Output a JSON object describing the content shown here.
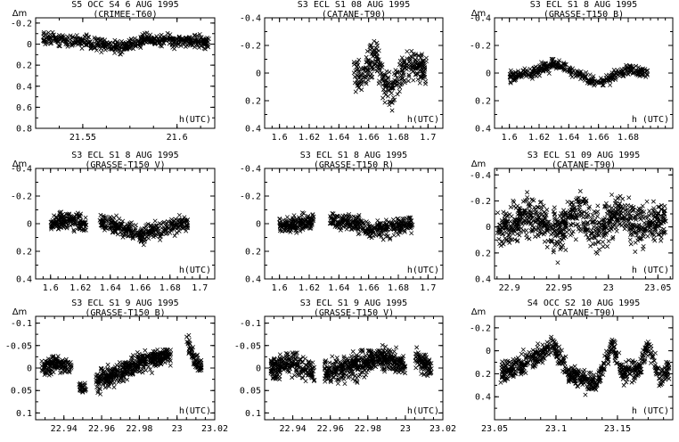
{
  "figure": {
    "ylabel": "Δm",
    "xlabel": "h(UTC)"
  },
  "chart_data": [
    {
      "type": "scatter",
      "title": "S5 OCC S4 6 AUG 1995",
      "subtitle": "(CRIMEE-T60)",
      "xlabel": "h(UTC)",
      "ylabel": "Δm",
      "xlim": [
        21.525,
        21.62
      ],
      "ylim": [
        -0.25,
        0.8
      ],
      "y_inverted": true,
      "xticks": [
        {
          "v": 21.55,
          "label": "21.55"
        },
        {
          "v": 21.6,
          "label": "21.6"
        }
      ],
      "yticks": [
        {
          "v": -0.2,
          "label": "-0.2"
        },
        {
          "v": 0,
          "label": "0"
        },
        {
          "v": 0.2,
          "label": "0.2"
        },
        {
          "v": 0.4,
          "label": "0.4"
        },
        {
          "v": 0.6,
          "label": "0.6"
        },
        {
          "v": 0.8,
          "label": "0.8"
        }
      ],
      "segments": [
        {
          "x0": 21.529,
          "x1": 21.617,
          "n": 520,
          "spread": 0.06,
          "knots": [
            [
              21.53,
              -0.05
            ],
            [
              21.55,
              -0.03
            ],
            [
              21.57,
              0.03
            ],
            [
              21.585,
              -0.05
            ],
            [
              21.6,
              -0.02
            ],
            [
              21.617,
              -0.02
            ]
          ]
        }
      ]
    },
    {
      "type": "scatter",
      "title": "S3 ECL S1 08 AUG 1995",
      "subtitle": "(CATANE-T90)",
      "xlabel": "h(UTC)",
      "ylabel": "",
      "xlim": [
        1.59,
        1.71
      ],
      "ylim": [
        -0.4,
        0.4
      ],
      "y_inverted": true,
      "xticks": [
        {
          "v": 1.6,
          "label": "1.6"
        },
        {
          "v": 1.62,
          "label": "1.62"
        },
        {
          "v": 1.64,
          "label": "1.64"
        },
        {
          "v": 1.66,
          "label": "1.66"
        },
        {
          "v": 1.68,
          "label": "1.68"
        },
        {
          "v": 1.7,
          "label": "1.7"
        }
      ],
      "yticks": [
        {
          "v": -0.4,
          "label": "-0.4"
        },
        {
          "v": -0.2,
          "label": "-0.2"
        },
        {
          "v": 0,
          "label": "0"
        },
        {
          "v": 0.2,
          "label": "0.2"
        },
        {
          "v": 0.4,
          "label": "0.4"
        }
      ],
      "segments": [
        {
          "x0": 1.65,
          "x1": 1.699,
          "n": 330,
          "spread": 0.12,
          "knots": [
            [
              1.65,
              -0.03
            ],
            [
              1.655,
              0.05
            ],
            [
              1.66,
              -0.08
            ],
            [
              1.665,
              -0.12
            ],
            [
              1.67,
              0.05
            ],
            [
              1.675,
              0.15
            ],
            [
              1.68,
              0.02
            ],
            [
              1.69,
              -0.05
            ],
            [
              1.699,
              -0.03
            ]
          ]
        }
      ]
    },
    {
      "type": "scatter",
      "title": "S3 ECL S1 8 AUG 1995",
      "subtitle": "(GRASSE-T150 B)",
      "xlabel": "h (UTC)",
      "ylabel": "Δm",
      "xlim": [
        1.59,
        1.71
      ],
      "ylim": [
        -0.4,
        0.4
      ],
      "y_inverted": true,
      "xticks": [
        {
          "v": 1.6,
          "label": "1.6"
        },
        {
          "v": 1.62,
          "label": "1.62"
        },
        {
          "v": 1.64,
          "label": "1.64"
        },
        {
          "v": 1.66,
          "label": "1.66"
        },
        {
          "v": 1.68,
          "label": "1.68"
        }
      ],
      "yticks": [
        {
          "v": -0.4,
          "label": "-0.4"
        },
        {
          "v": -0.2,
          "label": "-0.2"
        },
        {
          "v": 0,
          "label": "0"
        },
        {
          "v": 0.2,
          "label": "0.2"
        },
        {
          "v": 0.4,
          "label": "0.4"
        }
      ],
      "segments": [
        {
          "x0": 1.6,
          "x1": 1.693,
          "n": 380,
          "spread": 0.04,
          "knots": [
            [
              1.6,
              0.03
            ],
            [
              1.62,
              -0.02
            ],
            [
              1.63,
              -0.07
            ],
            [
              1.645,
              0.0
            ],
            [
              1.66,
              0.08
            ],
            [
              1.67,
              0.02
            ],
            [
              1.68,
              -0.02
            ],
            [
              1.693,
              0.0
            ]
          ]
        }
      ]
    },
    {
      "type": "scatter",
      "title": "S3 ECL S1 8 AUG 1995",
      "subtitle": "(GRASSE-T150 V)",
      "xlabel": "h(UTC)",
      "ylabel": "Δm",
      "xlim": [
        1.59,
        1.71
      ],
      "ylim": [
        -0.4,
        0.4
      ],
      "y_inverted": true,
      "xticks": [
        {
          "v": 1.6,
          "label": "1.6"
        },
        {
          "v": 1.62,
          "label": "1.62"
        },
        {
          "v": 1.64,
          "label": "1.64"
        },
        {
          "v": 1.66,
          "label": "1.66"
        },
        {
          "v": 1.68,
          "label": "1.68"
        },
        {
          "v": 1.7,
          "label": "1.7"
        }
      ],
      "yticks": [
        {
          "v": -0.4,
          "label": "-0.4"
        },
        {
          "v": -0.2,
          "label": "-0.2"
        },
        {
          "v": 0,
          "label": "0"
        },
        {
          "v": 0.2,
          "label": "0.2"
        },
        {
          "v": 0.4,
          "label": "0.4"
        }
      ],
      "segments": [
        {
          "x0": 1.6,
          "x1": 1.624,
          "n": 170,
          "spread": 0.06,
          "knots": [
            [
              1.6,
              0.0
            ],
            [
              1.612,
              -0.02
            ],
            [
              1.624,
              0.0
            ]
          ]
        },
        {
          "x0": 1.633,
          "x1": 1.692,
          "n": 330,
          "spread": 0.06,
          "knots": [
            [
              1.633,
              -0.02
            ],
            [
              1.645,
              0.02
            ],
            [
              1.66,
              0.08
            ],
            [
              1.675,
              0.03
            ],
            [
              1.692,
              0.0
            ]
          ]
        }
      ]
    },
    {
      "type": "scatter",
      "title": "S3 ECL S1 8 AUG 1995",
      "subtitle": "(GRASSE-T150 R)",
      "xlabel": "h(UTC)",
      "ylabel": "",
      "xlim": [
        1.59,
        1.71
      ],
      "ylim": [
        -0.4,
        0.4
      ],
      "y_inverted": true,
      "xticks": [
        {
          "v": 1.6,
          "label": "1.6"
        },
        {
          "v": 1.62,
          "label": "1.62"
        },
        {
          "v": 1.64,
          "label": "1.64"
        },
        {
          "v": 1.66,
          "label": "1.66"
        },
        {
          "v": 1.68,
          "label": "1.68"
        },
        {
          "v": 1.7,
          "label": "1.7"
        }
      ],
      "yticks": [
        {
          "v": -0.4,
          "label": "-0.4"
        },
        {
          "v": -0.2,
          "label": "-0.2"
        },
        {
          "v": 0,
          "label": "0"
        },
        {
          "v": 0.2,
          "label": "0.2"
        },
        {
          "v": 0.4,
          "label": "0.4"
        }
      ],
      "segments": [
        {
          "x0": 1.6,
          "x1": 1.623,
          "n": 170,
          "spread": 0.06,
          "knots": [
            [
              1.6,
              0.02
            ],
            [
              1.612,
              0.0
            ],
            [
              1.623,
              -0.02
            ]
          ]
        },
        {
          "x0": 1.634,
          "x1": 1.69,
          "n": 330,
          "spread": 0.06,
          "knots": [
            [
              1.634,
              -0.03
            ],
            [
              1.65,
              0.0
            ],
            [
              1.662,
              0.05
            ],
            [
              1.68,
              0.02
            ],
            [
              1.69,
              0.0
            ]
          ]
        }
      ]
    },
    {
      "type": "scatter",
      "title": "S3 ECL S1 09 AUG 1995",
      "subtitle": "(CATANE-T90)",
      "xlabel": "h (UTC)",
      "ylabel": "Δm",
      "xlim": [
        22.885,
        23.065
      ],
      "ylim": [
        -0.45,
        0.4
      ],
      "y_inverted": true,
      "xticks": [
        {
          "v": 22.9,
          "label": "22.9"
        },
        {
          "v": 22.95,
          "label": "22.95"
        },
        {
          "v": 23.0,
          "label": "23"
        },
        {
          "v": 23.05,
          "label": "23.05"
        }
      ],
      "yticks": [
        {
          "v": -0.4,
          "label": "-0.4"
        },
        {
          "v": -0.2,
          "label": "-0.2"
        },
        {
          "v": 0,
          "label": "0"
        },
        {
          "v": 0.2,
          "label": "0.2"
        },
        {
          "v": 0.4,
          "label": "0.4"
        }
      ],
      "segments": [
        {
          "x0": 22.888,
          "x1": 23.058,
          "n": 850,
          "spread": 0.16,
          "knots": [
            [
              22.888,
              0.05
            ],
            [
              22.92,
              -0.1
            ],
            [
              22.95,
              0.05
            ],
            [
              22.97,
              -0.12
            ],
            [
              22.99,
              0.05
            ],
            [
              23.01,
              -0.12
            ],
            [
              23.03,
              0.0
            ],
            [
              23.058,
              -0.05
            ]
          ]
        }
      ]
    },
    {
      "type": "scatter",
      "title": "S3 ECL S1 9 AUG 1995",
      "subtitle": "(GRASSE-T150 B)",
      "xlabel": "h(UTC)",
      "ylabel": "Δm",
      "xlim": [
        22.925,
        23.02
      ],
      "ylim": [
        -0.115,
        0.115
      ],
      "y_inverted": true,
      "xticks": [
        {
          "v": 22.94,
          "label": "22.94"
        },
        {
          "v": 22.96,
          "label": "22.96"
        },
        {
          "v": 22.98,
          "label": "22.98"
        },
        {
          "v": 23.0,
          "label": "23"
        },
        {
          "v": 23.02,
          "label": "23.02"
        }
      ],
      "yticks": [
        {
          "v": -0.1,
          "label": "-0.1"
        },
        {
          "v": -0.05,
          "label": "-0.05"
        },
        {
          "v": 0,
          "label": "0"
        },
        {
          "v": 0.05,
          "label": "0.05"
        },
        {
          "v": 0.1,
          "label": "0.1"
        }
      ],
      "segments": [
        {
          "x0": 22.928,
          "x1": 22.944,
          "n": 140,
          "spread": 0.018,
          "knots": [
            [
              22.928,
              0.0
            ],
            [
              22.936,
              -0.01
            ],
            [
              22.944,
              0.0
            ]
          ]
        },
        {
          "x0": 22.948,
          "x1": 22.952,
          "n": 25,
          "spread": 0.015,
          "knots": [
            [
              22.948,
              0.04
            ],
            [
              22.952,
              0.05
            ]
          ]
        },
        {
          "x0": 22.957,
          "x1": 22.997,
          "n": 430,
          "spread": 0.022,
          "knots": [
            [
              22.957,
              0.03
            ],
            [
              22.965,
              0.02
            ],
            [
              22.975,
              0.0
            ],
            [
              22.985,
              -0.02
            ],
            [
              22.997,
              -0.03
            ]
          ]
        },
        {
          "x0": 23.005,
          "x1": 23.013,
          "n": 70,
          "spread": 0.02,
          "knots": [
            [
              23.005,
              -0.07
            ],
            [
              23.009,
              -0.02
            ],
            [
              23.013,
              0.0
            ]
          ]
        }
      ]
    },
    {
      "type": "scatter",
      "title": "S3 ECL S1 9 AUG 1995",
      "subtitle": "(GRASSE-T150 V)",
      "xlabel": "h(UTC)",
      "ylabel": "",
      "xlim": [
        22.925,
        23.02
      ],
      "ylim": [
        -0.115,
        0.115
      ],
      "y_inverted": true,
      "xticks": [
        {
          "v": 22.94,
          "label": "22.94"
        },
        {
          "v": 22.96,
          "label": "22.96"
        },
        {
          "v": 22.98,
          "label": "22.98"
        },
        {
          "v": 23.0,
          "label": "23"
        },
        {
          "v": 23.02,
          "label": "23.02"
        }
      ],
      "yticks": [
        {
          "v": -0.1,
          "label": "-0.1"
        },
        {
          "v": -0.05,
          "label": "-0.05"
        },
        {
          "v": 0,
          "label": "0"
        },
        {
          "v": 0.05,
          "label": "0.05"
        },
        {
          "v": 0.1,
          "label": "0.1"
        }
      ],
      "segments": [
        {
          "x0": 22.928,
          "x1": 22.952,
          "n": 220,
          "spread": 0.028,
          "knots": [
            [
              22.928,
              0.0
            ],
            [
              22.94,
              -0.01
            ],
            [
              22.952,
              0.01
            ]
          ]
        },
        {
          "x0": 22.957,
          "x1": 23.0,
          "n": 470,
          "spread": 0.028,
          "knots": [
            [
              22.957,
              0.01
            ],
            [
              22.97,
              0.0
            ],
            [
              22.985,
              -0.02
            ],
            [
              23.0,
              -0.01
            ]
          ]
        },
        {
          "x0": 23.005,
          "x1": 23.014,
          "n": 80,
          "spread": 0.025,
          "knots": [
            [
              23.005,
              -0.02
            ],
            [
              23.014,
              0.0
            ]
          ]
        }
      ]
    },
    {
      "type": "scatter",
      "title": "S4 OCC S2 10 AUG 1995",
      "subtitle": "(CATANE-T90)",
      "xlabel": "h (UTC)",
      "ylabel": "Δm",
      "xlim": [
        23.05,
        23.195
      ],
      "ylim": [
        -0.3,
        0.6
      ],
      "y_inverted": true,
      "xticks": [
        {
          "v": 23.05,
          "label": "23.05"
        },
        {
          "v": 23.1,
          "label": "23.1"
        },
        {
          "v": 23.15,
          "label": "23.15"
        }
      ],
      "yticks": [
        {
          "v": -0.2,
          "label": "-0.2"
        },
        {
          "v": 0,
          "label": "0"
        },
        {
          "v": 0.2,
          "label": "0.2"
        },
        {
          "v": 0.4,
          "label": "0.4"
        }
      ],
      "segments": [
        {
          "x0": 23.055,
          "x1": 23.192,
          "n": 700,
          "spread": 0.09,
          "knots": [
            [
              23.055,
              0.2
            ],
            [
              23.07,
              0.12
            ],
            [
              23.085,
              0.05
            ],
            [
              23.098,
              -0.05
            ],
            [
              23.11,
              0.2
            ],
            [
              23.12,
              0.25
            ],
            [
              23.132,
              0.3
            ],
            [
              23.145,
              -0.05
            ],
            [
              23.155,
              0.2
            ],
            [
              23.168,
              0.15
            ],
            [
              23.175,
              -0.05
            ],
            [
              23.185,
              0.25
            ],
            [
              23.192,
              0.15
            ]
          ]
        }
      ]
    }
  ]
}
